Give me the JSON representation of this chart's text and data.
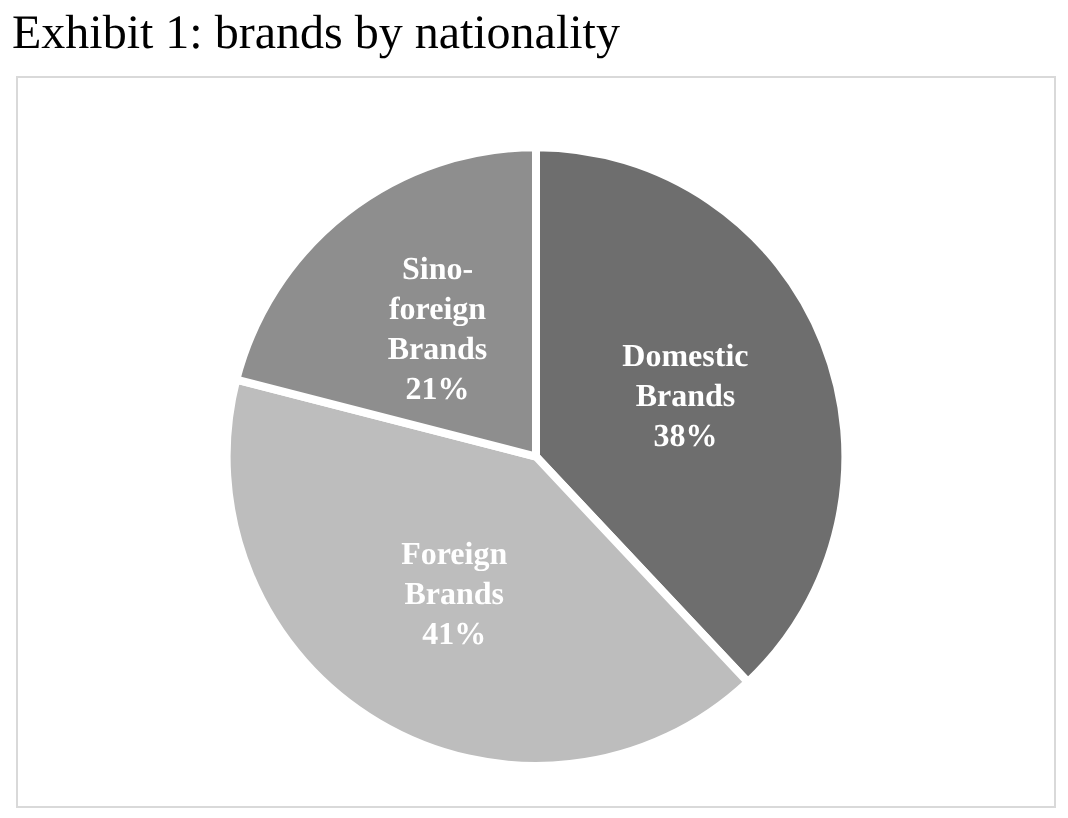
{
  "chart_data": {
    "type": "pie",
    "title": "Exhibit 1: brands by nationality",
    "categories": [
      "Domestic Brands",
      "Foreign Brands",
      "Sino-foreign Brands"
    ],
    "values": [
      38,
      41,
      21
    ],
    "colors": [
      "#6e6e6e",
      "#bdbdbd",
      "#8e8e8e"
    ],
    "value_labels": [
      "38%",
      "41%",
      "21%"
    ]
  }
}
